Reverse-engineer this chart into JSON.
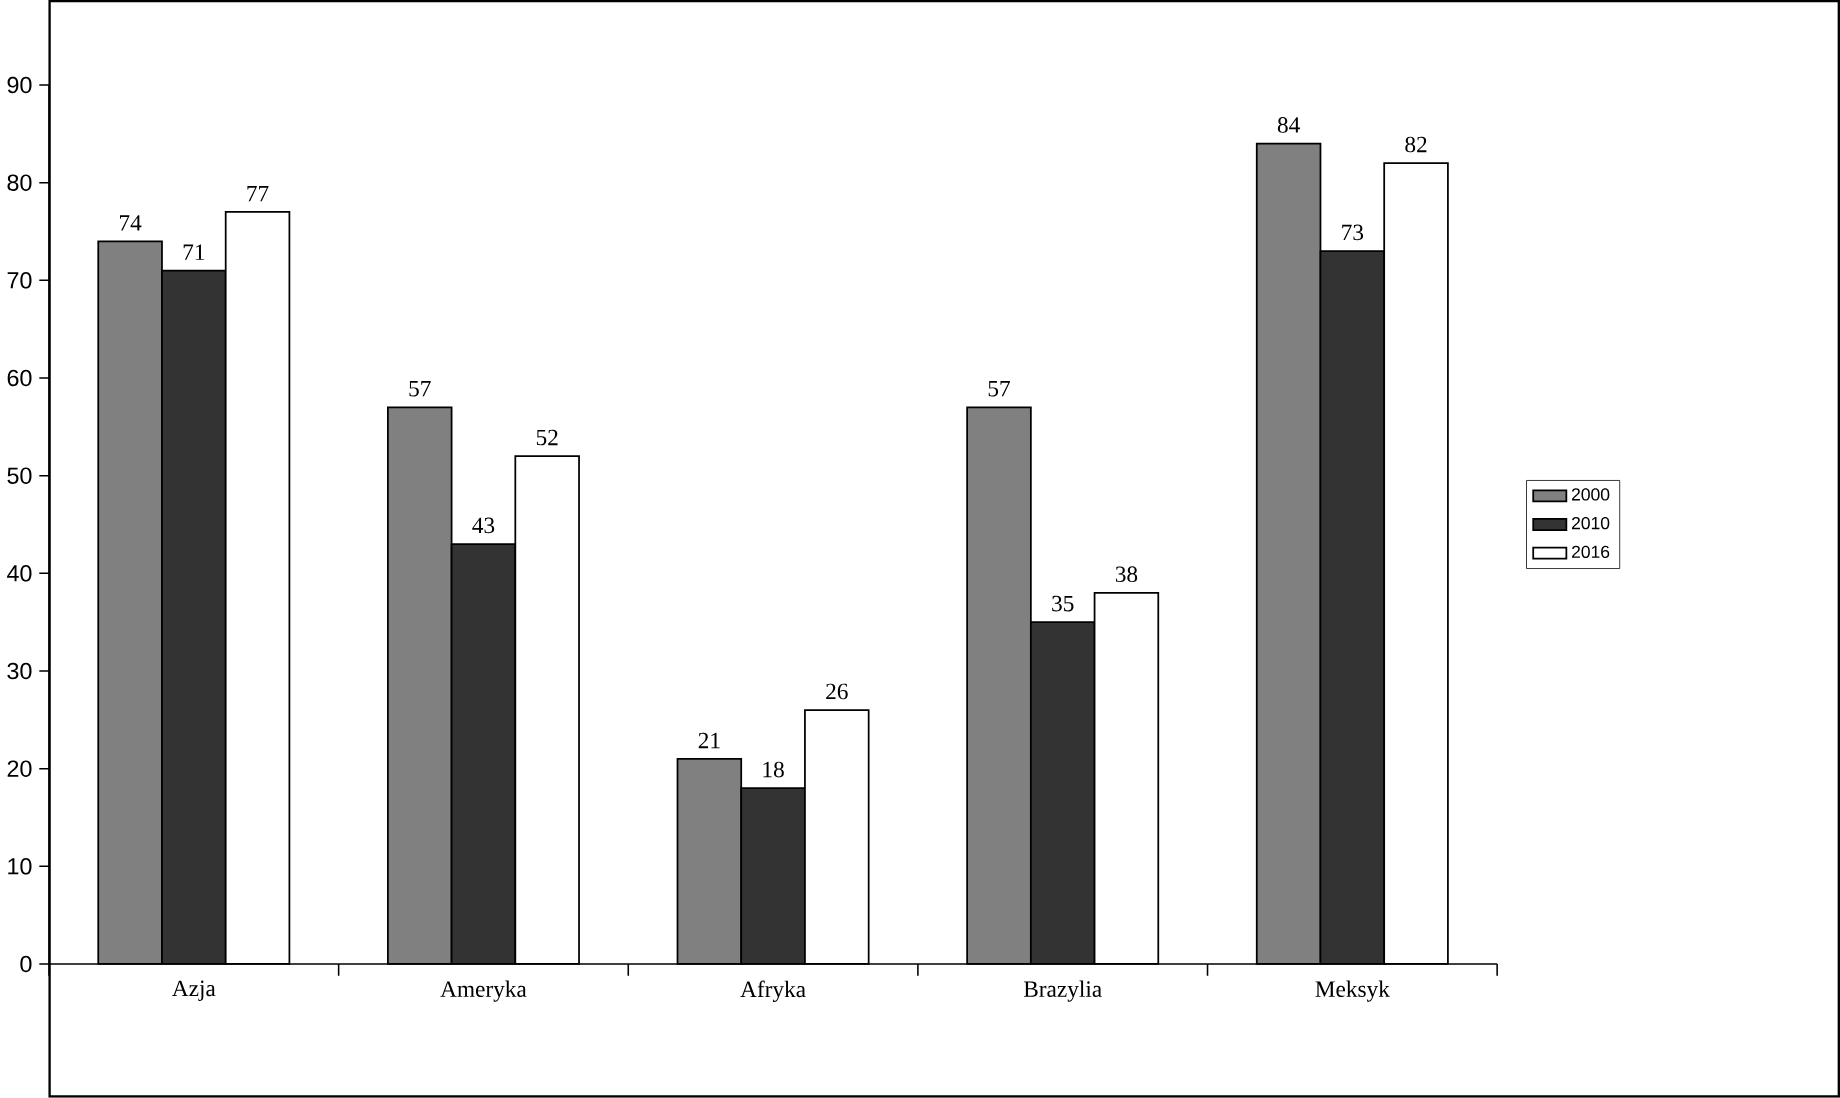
{
  "chart_data": {
    "type": "bar",
    "categories": [
      "Azja",
      "Ameryka",
      "Afryka",
      "Brazylia",
      "Meksyk"
    ],
    "series": [
      {
        "name": "2000",
        "color": "#808080",
        "values": [
          74,
          57,
          21,
          57,
          84
        ]
      },
      {
        "name": "2010",
        "color": "#333333",
        "values": [
          71,
          43,
          18,
          35,
          73
        ]
      },
      {
        "name": "2016",
        "color": "#ffffff",
        "values": [
          77,
          52,
          26,
          38,
          82
        ]
      }
    ],
    "ylim": [
      0,
      90
    ],
    "yticks": [
      0,
      10,
      20,
      30,
      40,
      50,
      60,
      70,
      80,
      90
    ],
    "grid": false,
    "legend": "right",
    "data_labels": true
  }
}
